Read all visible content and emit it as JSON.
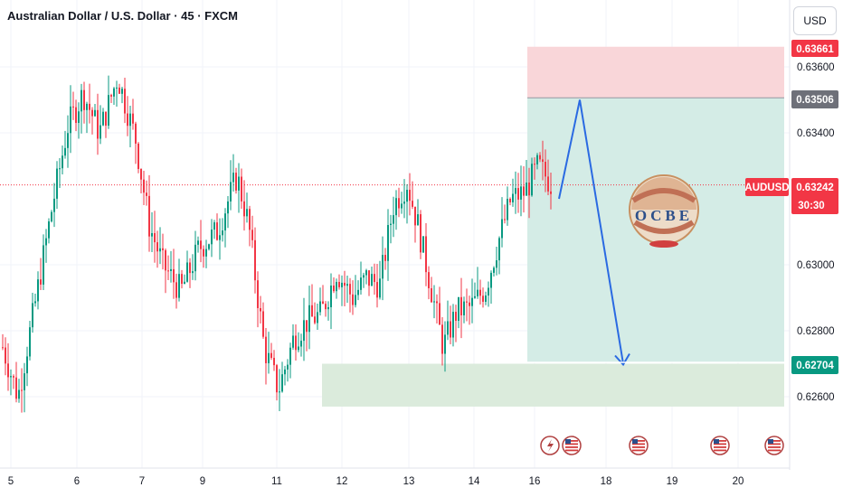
{
  "header": {
    "title": "Australian Dollar / U.S. Dollar · 45 · FXCM",
    "currency": "USD"
  },
  "price_tags": {
    "stop": "0.63661",
    "entry": "0.63506",
    "symbol": "AUDUSD",
    "current": "0.63242",
    "countdown": "30:30",
    "target": "0.62704"
  },
  "logo_text": "OCBE",
  "colors": {
    "up": "#089981",
    "down": "#f23645",
    "stop_zone": "#f9d6d9",
    "target_zone": "#d4ece6",
    "support_zone": "#dbebdc",
    "arrow": "#2a6ae2",
    "entry_tag": "#6e7079",
    "target_tag": "#089981",
    "stop_tag": "#f23645"
  },
  "chart_data": {
    "type": "candlestick",
    "symbol": "AUDUSD",
    "timeframe": "45",
    "source": "FXCM",
    "x_ticks": [
      "5",
      "6",
      "7",
      "9",
      "11",
      "12",
      "13",
      "14",
      "16",
      "18",
      "19",
      "20"
    ],
    "y_ticks": [
      "0.63600",
      "0.63400",
      "0.63000",
      "0.62800",
      "0.62600"
    ],
    "ylim": [
      0.6247,
      0.6381
    ],
    "trade_setup": {
      "direction": "short",
      "entry": 0.63506,
      "stop_loss": 0.63661,
      "take_profit": 0.62704
    },
    "support_zone": [
      0.6257,
      0.627
    ],
    "projected_path": [
      "0.6320",
      "0.6350",
      "0.6270"
    ],
    "last_price": 0.63242
  }
}
